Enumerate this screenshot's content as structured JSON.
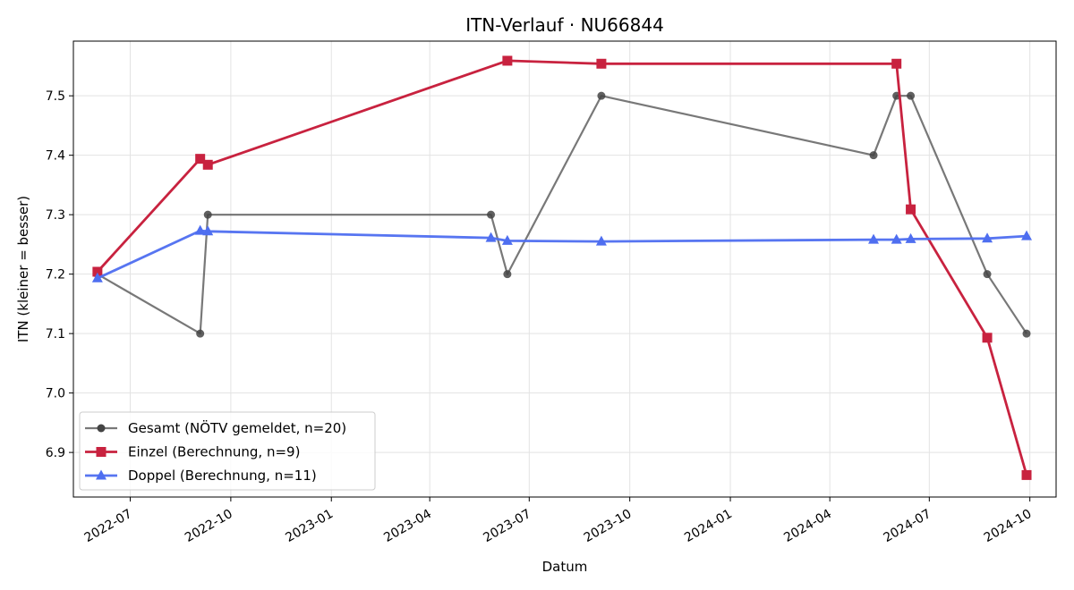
{
  "chart_data": {
    "type": "line",
    "title": "ITN-Verlauf · NU66844",
    "xlabel": "Datum",
    "ylabel": "ITN  (kleiner = besser)",
    "x_ticks": [
      "2022-07",
      "2022-10",
      "2023-01",
      "2023-04",
      "2023-07",
      "2023-10",
      "2024-01",
      "2024-04",
      "2024-07",
      "2024-10"
    ],
    "y_ticks": [
      "6.9",
      "7.0",
      "7.1",
      "7.2",
      "7.3",
      "7.4",
      "7.5"
    ],
    "xlim": [
      "2022-05-10",
      "2024-10-25"
    ],
    "ylim": [
      6.825,
      7.592
    ],
    "grid": true,
    "legend_position": "lower-left",
    "series": [
      {
        "name": "Gesamt (NÖTV gemeldet, n=20)",
        "color": "#444444",
        "marker": "circle",
        "points": [
          {
            "x": "2022-06-01",
            "y": 7.2
          },
          {
            "x": "2022-09-03",
            "y": 7.1
          },
          {
            "x": "2022-09-10",
            "y": 7.3
          },
          {
            "x": "2023-05-27",
            "y": 7.3
          },
          {
            "x": "2023-06-11",
            "y": 7.2
          },
          {
            "x": "2023-09-05",
            "y": 7.5
          },
          {
            "x": "2024-05-11",
            "y": 7.4
          },
          {
            "x": "2024-06-01",
            "y": 7.5
          },
          {
            "x": "2024-06-14",
            "y": 7.5
          },
          {
            "x": "2024-08-23",
            "y": 7.2
          },
          {
            "x": "2024-09-28",
            "y": 7.1
          }
        ]
      },
      {
        "name": "Einzel (Berechnung, n=9)",
        "color": "#c8223f",
        "marker": "square",
        "points": [
          {
            "x": "2022-06-01",
            "y": 7.204
          },
          {
            "x": "2022-09-03",
            "y": 7.394
          },
          {
            "x": "2022-09-10",
            "y": 7.384
          },
          {
            "x": "2023-06-11",
            "y": 7.559
          },
          {
            "x": "2023-09-05",
            "y": 7.554
          },
          {
            "x": "2024-06-01",
            "y": 7.554
          },
          {
            "x": "2024-06-14",
            "y": 7.309
          },
          {
            "x": "2024-08-23",
            "y": 7.093
          },
          {
            "x": "2024-09-28",
            "y": 6.862
          }
        ]
      },
      {
        "name": "Doppel (Berechnung, n=11)",
        "color": "#4e6ef0",
        "marker": "triangle",
        "points": [
          {
            "x": "2022-06-01",
            "y": 7.193
          },
          {
            "x": "2022-09-03",
            "y": 7.273
          },
          {
            "x": "2022-09-10",
            "y": 7.272
          },
          {
            "x": "2023-05-27",
            "y": 7.261
          },
          {
            "x": "2023-06-11",
            "y": 7.256
          },
          {
            "x": "2023-09-05",
            "y": 7.255
          },
          {
            "x": "2024-05-11",
            "y": 7.258
          },
          {
            "x": "2024-06-01",
            "y": 7.258
          },
          {
            "x": "2024-06-14",
            "y": 7.259
          },
          {
            "x": "2024-08-23",
            "y": 7.26
          },
          {
            "x": "2024-09-28",
            "y": 7.264
          }
        ]
      }
    ]
  }
}
